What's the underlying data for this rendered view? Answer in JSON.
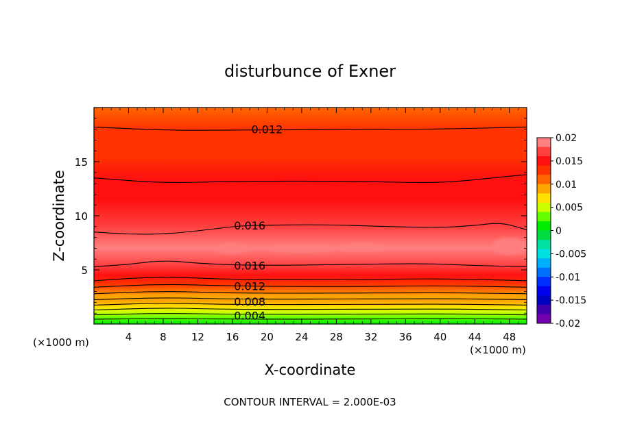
{
  "chart_data": {
    "type": "heatmap",
    "title": "disturbunce of Exner",
    "xlabel": "X-coordinate",
    "ylabel": "Z-coordinate",
    "x_unit_label": "(×1000 m)",
    "footer": "CONTOUR INTERVAL = 2.000E-03",
    "xlim": [
      0,
      50
    ],
    "ylim": [
      0,
      20
    ],
    "x_ticks": [
      4,
      8,
      12,
      16,
      20,
      24,
      28,
      32,
      36,
      40,
      44,
      48
    ],
    "y_ticks": [
      5,
      10,
      15
    ],
    "contour_interval": 0.002,
    "contour_labels": [
      {
        "text": "0.012",
        "x": 20,
        "z": 18.0
      },
      {
        "text": "0.016",
        "x": 18,
        "z": 9.1
      },
      {
        "text": "0.016",
        "x": 18,
        "z": 5.4
      },
      {
        "text": "0.012",
        "x": 18,
        "z": 3.5
      },
      {
        "text": "0.008",
        "x": 18,
        "z": 2.1
      },
      {
        "text": "0.004",
        "x": 18,
        "z": 0.8
      }
    ],
    "vertical_profile": [
      {
        "z": 0.0,
        "value": 0.001
      },
      {
        "z": 0.6,
        "value": 0.003
      },
      {
        "z": 1.1,
        "value": 0.005
      },
      {
        "z": 1.6,
        "value": 0.007
      },
      {
        "z": 2.1,
        "value": 0.008
      },
      {
        "z": 2.6,
        "value": 0.0095
      },
      {
        "z": 3.2,
        "value": 0.011
      },
      {
        "z": 3.7,
        "value": 0.013
      },
      {
        "z": 4.5,
        "value": 0.015
      },
      {
        "z": 5.4,
        "value": 0.016
      },
      {
        "z": 7.0,
        "value": 0.0185
      },
      {
        "z": 9.0,
        "value": 0.016
      },
      {
        "z": 11.5,
        "value": 0.0155
      },
      {
        "z": 13.3,
        "value": 0.014
      },
      {
        "z": 15.5,
        "value": 0.013
      },
      {
        "z": 18.0,
        "value": 0.012
      },
      {
        "z": 20.0,
        "value": 0.011
      }
    ],
    "colorbar": {
      "labels": [
        "0.02",
        "0.015",
        "0.01",
        "0.005",
        "0",
        "-0.005",
        "-0.01",
        "-0.015",
        "-0.02"
      ],
      "levels": [
        {
          "from": 0.018,
          "to": 0.02,
          "color": "#ff8080"
        },
        {
          "from": 0.016,
          "to": 0.018,
          "color": "#ff4040"
        },
        {
          "from": 0.014,
          "to": 0.016,
          "color": "#ff1010"
        },
        {
          "from": 0.012,
          "to": 0.014,
          "color": "#ff3300"
        },
        {
          "from": 0.01,
          "to": 0.012,
          "color": "#ff6600"
        },
        {
          "from": 0.008,
          "to": 0.01,
          "color": "#ffa500"
        },
        {
          "from": 0.006,
          "to": 0.008,
          "color": "#ffe000"
        },
        {
          "from": 0.004,
          "to": 0.006,
          "color": "#ccff00"
        },
        {
          "from": 0.002,
          "to": 0.004,
          "color": "#66ff00"
        },
        {
          "from": 0.0,
          "to": 0.002,
          "color": "#00ee00"
        },
        {
          "from": -0.002,
          "to": 0.0,
          "color": "#00dd44"
        },
        {
          "from": -0.004,
          "to": -0.002,
          "color": "#00e0a0"
        },
        {
          "from": -0.006,
          "to": -0.004,
          "color": "#00e0e0"
        },
        {
          "from": -0.008,
          "to": -0.006,
          "color": "#00b0ff"
        },
        {
          "from": -0.01,
          "to": -0.008,
          "color": "#0070ff"
        },
        {
          "from": -0.012,
          "to": -0.01,
          "color": "#0030ff"
        },
        {
          "from": -0.014,
          "to": -0.012,
          "color": "#0000ee"
        },
        {
          "from": -0.016,
          "to": -0.014,
          "color": "#0000c0"
        },
        {
          "from": -0.018,
          "to": -0.016,
          "color": "#4000b0"
        },
        {
          "from": -0.02,
          "to": -0.018,
          "color": "#7000b0"
        }
      ]
    },
    "contour_lines": [
      {
        "value": 0.001,
        "points": [
          [
            0,
            0.45
          ],
          [
            8,
            0.5
          ],
          [
            16,
            0.45
          ],
          [
            30,
            0.45
          ],
          [
            40,
            0.5
          ],
          [
            50,
            0.45
          ]
        ]
      },
      {
        "value": 0.003,
        "points": [
          [
            0,
            0.85
          ],
          [
            8,
            1.0
          ],
          [
            16,
            0.9
          ],
          [
            30,
            0.9
          ],
          [
            40,
            0.95
          ],
          [
            50,
            0.85
          ]
        ]
      },
      {
        "value": 0.005,
        "points": [
          [
            0,
            1.3
          ],
          [
            8,
            1.5
          ],
          [
            16,
            1.35
          ],
          [
            30,
            1.35
          ],
          [
            40,
            1.4
          ],
          [
            50,
            1.3
          ]
        ]
      },
      {
        "value": 0.007,
        "points": [
          [
            0,
            1.75
          ],
          [
            8,
            1.95
          ],
          [
            16,
            1.8
          ],
          [
            30,
            1.8
          ],
          [
            40,
            1.85
          ],
          [
            50,
            1.75
          ]
        ]
      },
      {
        "value": 0.009,
        "points": [
          [
            0,
            2.25
          ],
          [
            8,
            2.45
          ],
          [
            16,
            2.3
          ],
          [
            30,
            2.3
          ],
          [
            40,
            2.35
          ],
          [
            50,
            2.25
          ]
        ]
      },
      {
        "value": 0.011,
        "points": [
          [
            0,
            2.8
          ],
          [
            8,
            3.05
          ],
          [
            16,
            2.85
          ],
          [
            30,
            2.85
          ],
          [
            40,
            2.9
          ],
          [
            50,
            2.8
          ]
        ]
      },
      {
        "value": 0.013,
        "points": [
          [
            0,
            3.4
          ],
          [
            8,
            3.7
          ],
          [
            16,
            3.5
          ],
          [
            30,
            3.45
          ],
          [
            40,
            3.55
          ],
          [
            50,
            3.4
          ]
        ]
      },
      {
        "value": 0.015,
        "points": [
          [
            0,
            4.0
          ],
          [
            8,
            4.4
          ],
          [
            16,
            4.1
          ],
          [
            30,
            4.1
          ],
          [
            40,
            4.2
          ],
          [
            50,
            4.0
          ]
        ]
      },
      {
        "value": 0.016,
        "points": [
          [
            0,
            5.3
          ],
          [
            4,
            5.5
          ],
          [
            8,
            5.9
          ],
          [
            12,
            5.6
          ],
          [
            18,
            5.4
          ],
          [
            30,
            5.5
          ],
          [
            38,
            5.6
          ],
          [
            44,
            5.4
          ],
          [
            50,
            5.3
          ]
        ]
      },
      {
        "value": 0.016,
        "points": [
          [
            0,
            8.5
          ],
          [
            4,
            8.3
          ],
          [
            8,
            8.3
          ],
          [
            12,
            8.6
          ],
          [
            16,
            9.0
          ],
          [
            18,
            9.1
          ],
          [
            26,
            9.2
          ],
          [
            34,
            9.0
          ],
          [
            40,
            8.9
          ],
          [
            44,
            9.1
          ],
          [
            47,
            9.4
          ],
          [
            50,
            8.7
          ]
        ]
      },
      {
        "value": 0.014,
        "points": [
          [
            0,
            13.5
          ],
          [
            8,
            13.0
          ],
          [
            16,
            13.2
          ],
          [
            30,
            13.2
          ],
          [
            40,
            13.0
          ],
          [
            46,
            13.5
          ],
          [
            50,
            13.8
          ]
        ]
      },
      {
        "value": 0.012,
        "points": [
          [
            0,
            18.2
          ],
          [
            8,
            17.9
          ],
          [
            16,
            17.9
          ],
          [
            30,
            18.0
          ],
          [
            40,
            18.0
          ],
          [
            50,
            18.2
          ]
        ]
      }
    ],
    "light_patches": [
      {
        "x": 16,
        "z": 7.0,
        "rx": 2,
        "rz": 0.5
      },
      {
        "x": 24,
        "z": 7.0,
        "rx": 4,
        "rz": 0.4
      },
      {
        "x": 31,
        "z": 7.1,
        "rx": 3,
        "rz": 0.4
      },
      {
        "x": 48,
        "z": 7.2,
        "rx": 2,
        "rz": 0.8
      }
    ]
  }
}
